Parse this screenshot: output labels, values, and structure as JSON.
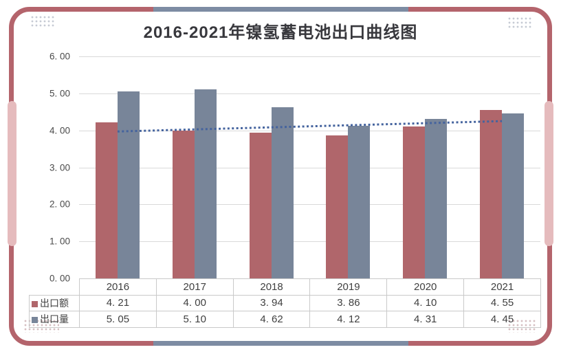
{
  "card": {
    "title": "2016-2021年镍氢蓄电池出口曲线图",
    "colors": {
      "frame": "#B4646C",
      "frame_accent_pink": "#E5BBBD",
      "frame_accent_blue": "#7D8CA3",
      "bar_export_value": "#B0666B",
      "bar_export_volume": "#788599",
      "trendline": "#44639E",
      "gridline": "#D9D9D9",
      "table_border": "#C9C9C9",
      "text": "#3F3F3F"
    }
  },
  "chart_data": {
    "type": "bar",
    "title": "2016-2021年镍氢蓄电池出口曲线图",
    "categories": [
      "2016",
      "2017",
      "2018",
      "2019",
      "2020",
      "2021"
    ],
    "series": [
      {
        "name": "出口额",
        "key": "export-value",
        "color": "#B0666B",
        "values": [
          4.21,
          4.0,
          3.94,
          3.86,
          4.1,
          4.55
        ]
      },
      {
        "name": "出口量",
        "key": "export-volume",
        "color": "#788599",
        "values": [
          5.05,
          5.1,
          4.62,
          4.12,
          4.31,
          4.45
        ]
      }
    ],
    "trendline": {
      "of_series": "出口额",
      "kind": "linear",
      "style": "dotted",
      "color": "#44639E",
      "y_start": 3.97,
      "y_end": 4.25
    },
    "ylim": [
      0,
      6
    ],
    "ytick_step": 1,
    "ytick_labels": [
      "0. 00",
      "1. 00",
      "2. 00",
      "3. 00",
      "4. 00",
      "5. 00",
      "6. 00"
    ],
    "grid": true,
    "xlabel": "",
    "ylabel": "",
    "legend_position": "data-table-row-labels"
  },
  "table": {
    "header": [
      "2016",
      "2017",
      "2018",
      "2019",
      "2020",
      "2021"
    ],
    "rows": [
      {
        "label": "出口额",
        "key": "export-value",
        "swatch_color": "#B0666B",
        "values": [
          "4. 21",
          "4. 00",
          "3. 94",
          "3. 86",
          "4. 10",
          "4. 55"
        ]
      },
      {
        "label": "出口量",
        "key": "export-volume",
        "swatch_color": "#788599",
        "values": [
          "5. 05",
          "5. 10",
          "4. 62",
          "4. 12",
          "4. 31",
          "4. 45"
        ]
      }
    ]
  }
}
